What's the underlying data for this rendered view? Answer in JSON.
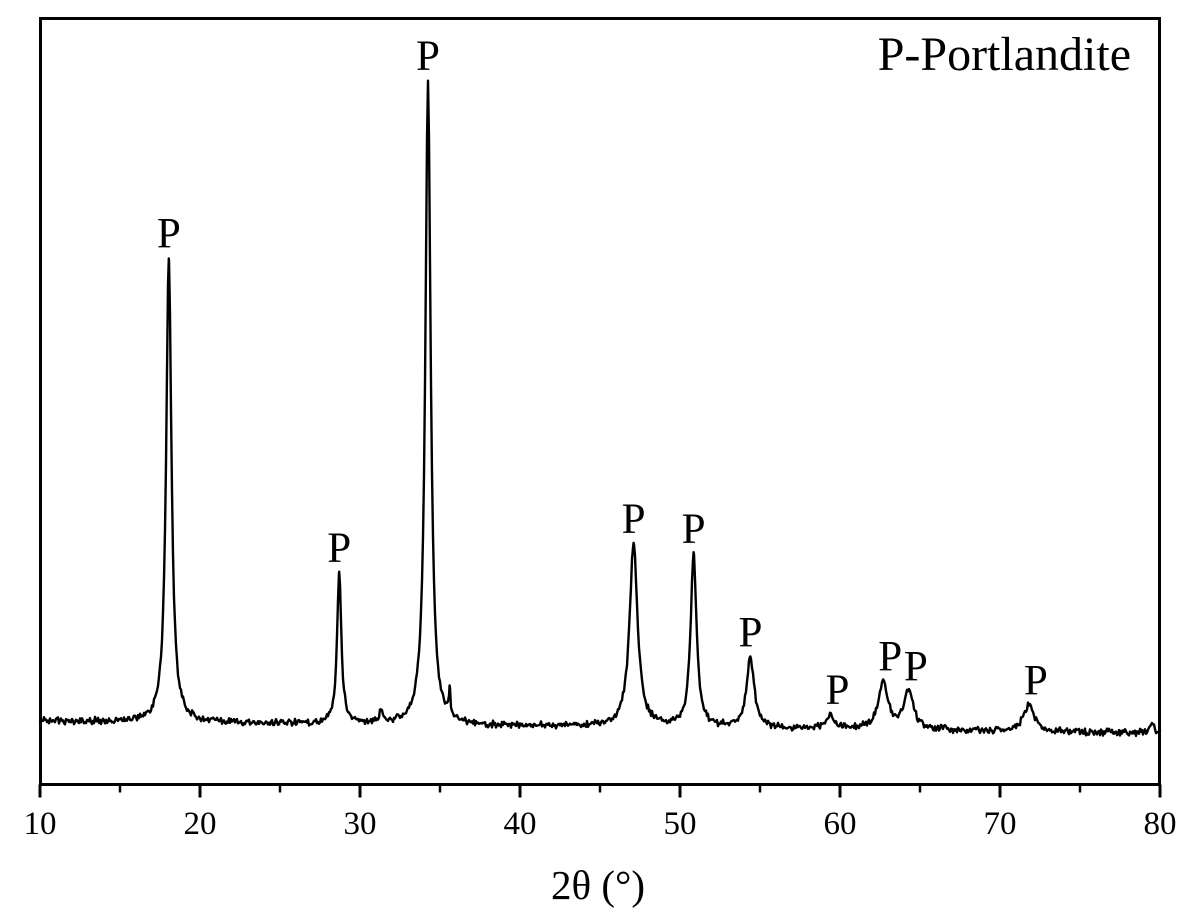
{
  "chart_data": {
    "type": "line",
    "title": "",
    "xlabel": "2θ (°)",
    "ylabel": "",
    "xlim": [
      10,
      80
    ],
    "ylim": [
      0,
      110
    ],
    "grid": false,
    "x_major_ticks": [
      10,
      20,
      30,
      40,
      50,
      60,
      70,
      80
    ],
    "x_minor_ticks": [
      15,
      25,
      35,
      45,
      55,
      65,
      75
    ],
    "legend_label": "P-Portlandite",
    "legend_position": "top-right",
    "line_color": "#000000",
    "background_color": "#ffffff",
    "peak_marker": "P",
    "peaks": [
      {
        "two_theta": 18.05,
        "rel_intensity": 72.0,
        "hwhm_deg": 0.2,
        "label": "P"
      },
      {
        "two_theta": 28.7,
        "rel_intensity": 23.5,
        "hwhm_deg": 0.16,
        "label": "P"
      },
      {
        "two_theta": 34.25,
        "rel_intensity": 100.0,
        "hwhm_deg": 0.2,
        "label": "P"
      },
      {
        "two_theta": 47.1,
        "rel_intensity": 28.5,
        "hwhm_deg": 0.3,
        "label": "P"
      },
      {
        "two_theta": 50.85,
        "rel_intensity": 27.0,
        "hwhm_deg": 0.22,
        "label": "P"
      },
      {
        "two_theta": 54.4,
        "rel_intensity": 11.0,
        "hwhm_deg": 0.28,
        "label": "P"
      },
      {
        "two_theta": 59.4,
        "rel_intensity": 2.2,
        "hwhm_deg": 0.3,
        "label": "P"
      },
      {
        "two_theta": 62.7,
        "rel_intensity": 7.5,
        "hwhm_deg": 0.35,
        "label": "P"
      },
      {
        "two_theta": 64.3,
        "rel_intensity": 6.0,
        "hwhm_deg": 0.35,
        "label": "P"
      },
      {
        "two_theta": 71.8,
        "rel_intensity": 4.0,
        "hwhm_deg": 0.4,
        "label": "P"
      }
    ],
    "minor_unlabeled_features": [
      {
        "two_theta": 31.3,
        "rel_intensity": 1.8,
        "hwhm_deg": 0.1
      },
      {
        "two_theta": 35.6,
        "rel_intensity": 4.0,
        "hwhm_deg": 0.06
      },
      {
        "two_theta": 79.5,
        "rel_intensity": 1.5,
        "hwhm_deg": 0.15
      }
    ]
  }
}
